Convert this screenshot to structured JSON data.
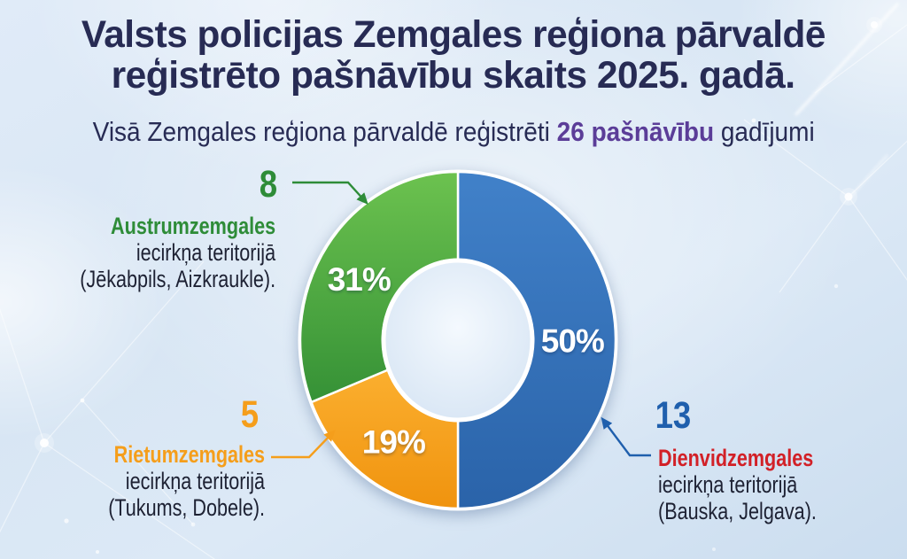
{
  "title_line1": "Valsts policijas Zemgales reģiona pārvaldē",
  "title_line2": "reģistrēto pašnāvību skaits 2025. gadā.",
  "subtitle": {
    "prefix": "Visā Zemgales reģiona pārvaldē reģistrēti ",
    "highlight": "26 pašnāvību",
    "suffix": " gadījumi"
  },
  "colors": {
    "title_navy": "#272b54",
    "subtitle_navy": "#272b54",
    "highlight_purple": "#5b3d98",
    "body_text": "#1d2133",
    "background_blue": "#dce9f6"
  },
  "chart_data": {
    "type": "pie",
    "donut": true,
    "title": "Valsts policijas Zemgales reģiona pārvaldē reģistrēto pašnāvību skaits 2025. gadā.",
    "total_cases": 26,
    "start_angle_deg": 0,
    "clockwise_from_top": true,
    "segments": [
      {
        "id": "dienvidzemgales",
        "label": "Dienvidzemgales iecirkņa teritorijā (Bauska, Jelgava).",
        "value": 13,
        "percent": 50,
        "percent_label": "50%",
        "color": "#2e6cb5",
        "gradient": [
          "#4181c9",
          "#2a63a9"
        ]
      },
      {
        "id": "rietumzemgales",
        "label": "Rietumzemgales iecirkņa teritorijā (Tukums, Dobele).",
        "value": 5,
        "percent": 19,
        "percent_label": "19%",
        "color": "#f59e1b",
        "gradient": [
          "#fbaf2f",
          "#f0930e"
        ]
      },
      {
        "id": "austrumzemgales",
        "label": "Austrumzemgales iecirkņa teritorijā (Jēkabpils, Aizkraukle).",
        "value": 8,
        "percent": 31,
        "percent_label": "31%",
        "color": "#44a03e",
        "gradient": [
          "#6cc24f",
          "#359136"
        ]
      }
    ]
  },
  "callouts": [
    {
      "id": "austrumzemgales",
      "count": "8",
      "count_color": "#2e8c38",
      "name": "Austrumzemgales",
      "name_color": "#2e8c38",
      "line2": "iecirkņa teritorijā",
      "line3": "(Jēkabpils, Aizkraukle)."
    },
    {
      "id": "rietumzemgales",
      "count": "5",
      "count_color": "#f59e1b",
      "name": "Rietumzemgales",
      "name_color": "#f59e1b",
      "line2": "iecirkņa teritorijā",
      "line3": "(Tukums, Dobele)."
    },
    {
      "id": "dienvidzemgales",
      "count": "13",
      "count_color": "#1f5fad",
      "name": "Dienvidzemgales",
      "name_color": "#d22027",
      "line2": "iecirkņa teritorijā",
      "line3": "(Bauska, Jelgava)."
    }
  ]
}
